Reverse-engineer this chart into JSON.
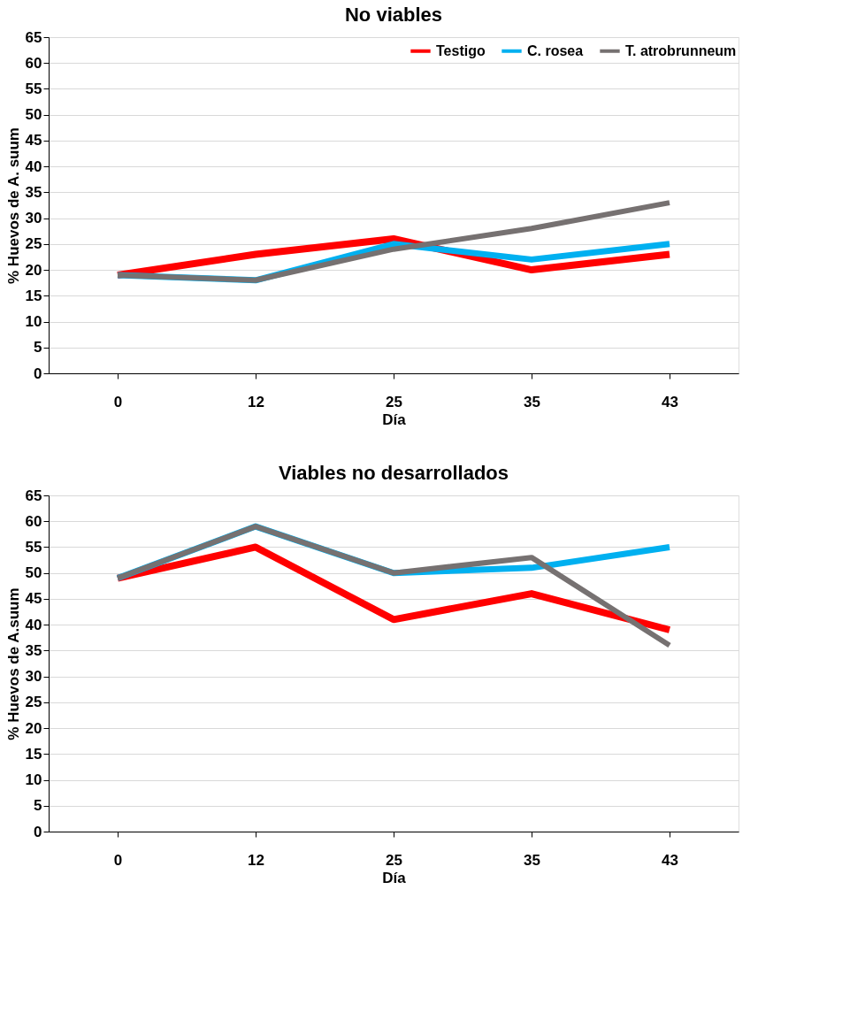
{
  "chart_data": [
    {
      "type": "line",
      "title": "No viables",
      "xlabel": "Día",
      "ylabel": "% Huevos de A. suum",
      "categories": [
        "0",
        "12",
        "25",
        "35",
        "43"
      ],
      "series": [
        {
          "name": "Testigo",
          "color": "#ff0000",
          "values": [
            19,
            23,
            26,
            20,
            23
          ]
        },
        {
          "name": "C. rosea",
          "color": "#00b0f0",
          "values": [
            19,
            18,
            25,
            22,
            25
          ]
        },
        {
          "name": "T. atrobrunneum",
          "color": "#767171",
          "values": [
            19,
            18,
            24,
            28,
            33
          ]
        }
      ],
      "ylim": [
        0,
        65
      ],
      "yticks": [
        0,
        5,
        10,
        15,
        20,
        25,
        30,
        35,
        40,
        45,
        50,
        55,
        60,
        65
      ],
      "grid": "y",
      "legend": "top right",
      "marker": "none",
      "line_style": "solid"
    },
    {
      "type": "line",
      "title": "Viables no desarrollados",
      "xlabel": "Día",
      "ylabel": "% Huevos de A.suum",
      "categories": [
        "0",
        "12",
        "25",
        "35",
        "43"
      ],
      "series": [
        {
          "name": "Testigo",
          "color": "#ff0000",
          "values": [
            49,
            55,
            41,
            46,
            39
          ]
        },
        {
          "name": "C. rosea",
          "color": "#00b0f0",
          "values": [
            49,
            59,
            50,
            51,
            55
          ]
        },
        {
          "name": "T. atrobrunneum",
          "color": "#767171",
          "values": [
            49,
            59,
            50,
            53,
            36
          ]
        }
      ],
      "ylim": [
        0,
        65
      ],
      "yticks": [
        0,
        5,
        10,
        15,
        20,
        25,
        30,
        35,
        40,
        45,
        50,
        55,
        60,
        65
      ],
      "grid": "y",
      "legend": "top right",
      "marker": "none",
      "line_style": "solid"
    }
  ]
}
